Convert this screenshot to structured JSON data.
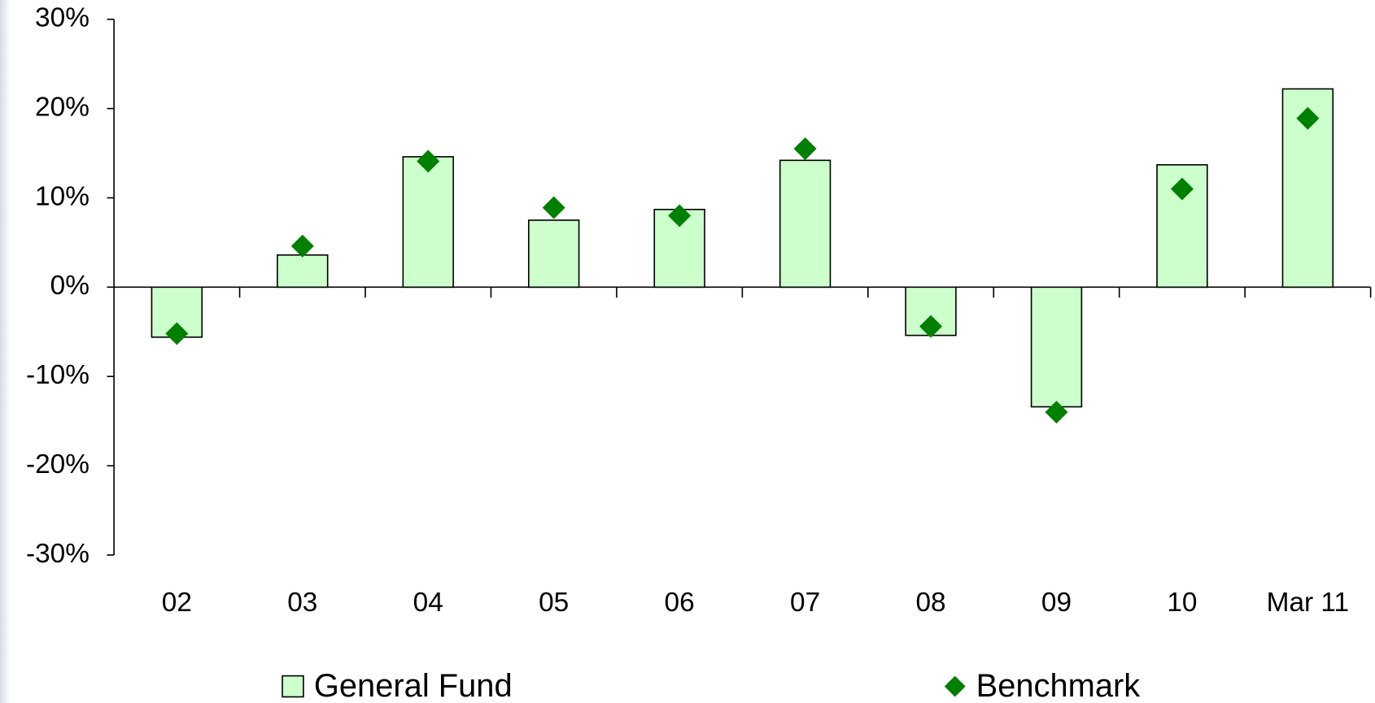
{
  "chart_data": {
    "type": "bar",
    "categories": [
      "02",
      "03",
      "04",
      "05",
      "06",
      "07",
      "08",
      "09",
      "10",
      "Mar 11"
    ],
    "series": [
      {
        "name": "General Fund",
        "color": "#ccffcc",
        "values": [
          -5.6,
          3.6,
          14.6,
          7.5,
          8.7,
          14.2,
          -5.4,
          -13.4,
          13.7,
          22.2
        ]
      },
      {
        "name": "Benchmark",
        "color": "#008000",
        "type": "scatter",
        "values": [
          -5.2,
          4.6,
          14.1,
          8.9,
          8.0,
          15.5,
          -4.4,
          -14.0,
          11.0,
          18.9
        ]
      }
    ],
    "ylim": [
      -30,
      30
    ],
    "yticks": [
      {
        "value": -30,
        "label": "-30%"
      },
      {
        "value": -20,
        "label": "-20%"
      },
      {
        "value": -10,
        "label": "-10%"
      },
      {
        "value": 0,
        "label": "0%"
      },
      {
        "value": 10,
        "label": "10%"
      },
      {
        "value": 20,
        "label": "20%"
      },
      {
        "value": 30,
        "label": "30%"
      }
    ],
    "grid": false
  }
}
